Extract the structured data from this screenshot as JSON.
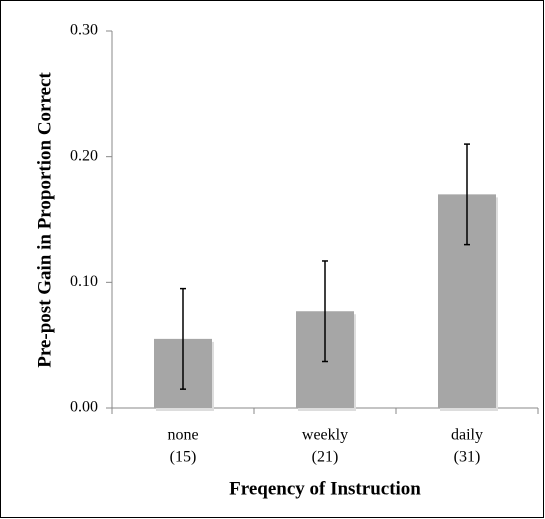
{
  "chart_data": {
    "type": "bar",
    "y_label": "Pre-post Gain in Proportion Correct",
    "x_label": "Freqency of Instruction",
    "categories": [
      "none",
      "weekly",
      "daily"
    ],
    "category_counts": [
      "(15)",
      "(21)",
      "(31)"
    ],
    "values": [
      0.055,
      0.077,
      0.17
    ],
    "errors": [
      0.04,
      0.04,
      0.04
    ],
    "color": "#a6a6a6",
    "ylim": [
      0,
      0.3
    ],
    "yticks": [
      {
        "value": 0,
        "label": "0.00"
      },
      {
        "value": 0.1,
        "label": "0.10"
      },
      {
        "value": 0.2,
        "label": "0.20"
      },
      {
        "value": 0.3,
        "label": "0.30"
      }
    ],
    "grid": false
  }
}
